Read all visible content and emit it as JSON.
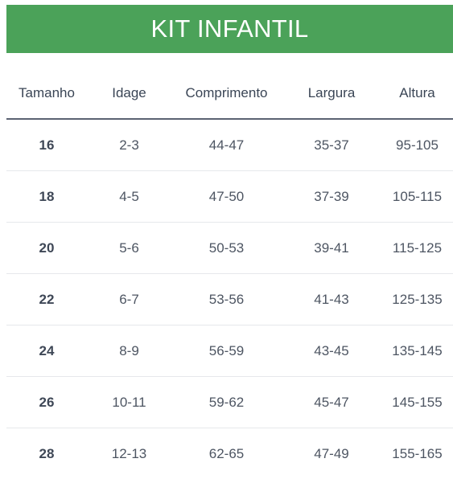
{
  "header": {
    "title": "KIT INFANTIL"
  },
  "colors": {
    "banner": "#4ba259",
    "header_rule": "#5b6272",
    "row_rule": "#e6e8eb"
  },
  "table": {
    "columns": [
      "Tamanho",
      "Idage",
      "Comprimento",
      "Largura",
      "Altura"
    ],
    "rows": [
      [
        "16",
        "2-3",
        "44-47",
        "35-37",
        "95-105"
      ],
      [
        "18",
        "4-5",
        "47-50",
        "37-39",
        "105-115"
      ],
      [
        "20",
        "5-6",
        "50-53",
        "39-41",
        "115-125"
      ],
      [
        "22",
        "6-7",
        "53-56",
        "41-43",
        "125-135"
      ],
      [
        "24",
        "8-9",
        "56-59",
        "43-45",
        "135-145"
      ],
      [
        "26",
        "10-11",
        "59-62",
        "45-47",
        "145-155"
      ],
      [
        "28",
        "12-13",
        "62-65",
        "47-49",
        "155-165"
      ]
    ]
  }
}
